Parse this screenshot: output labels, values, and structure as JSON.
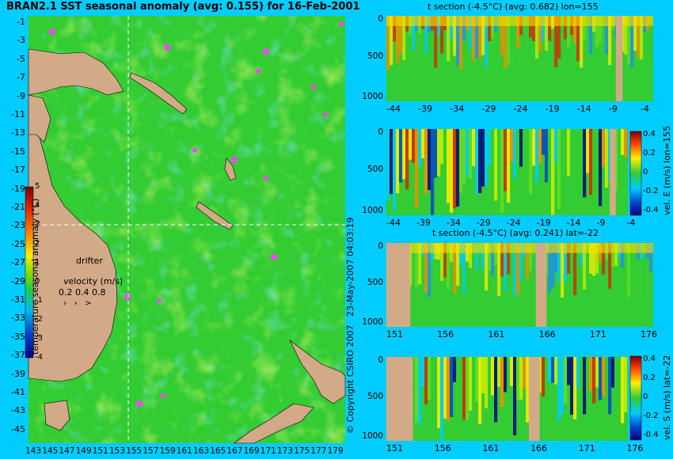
{
  "map": {
    "title": "BRAN2.1 SST seasonal anomaly (avg: 0.155) for 16-Feb-2001",
    "lat_ticks": [
      "-1",
      "-3",
      "-5",
      "-7",
      "-9",
      "-11",
      "-13",
      "-15",
      "-17",
      "-19",
      "-21",
      "-23",
      "-25",
      "-27",
      "-29",
      "-31",
      "-33",
      "-35",
      "-37",
      "-39",
      "-41",
      "-43",
      "-45"
    ],
    "lon_ticks": [
      "143",
      "145",
      "147",
      "149",
      "151",
      "153",
      "155",
      "157",
      "159",
      "161",
      "163",
      "165",
      "167",
      "169",
      "171",
      "173",
      "175",
      "177",
      "179"
    ],
    "colorbar_label": "temperature seasonal anomaly (°C)",
    "colorbar_ticks": [
      "5",
      "4",
      "3",
      "2",
      "1",
      "0",
      "-1",
      "-2",
      "-3",
      "-4"
    ],
    "drifter_label": "drifter",
    "velocity_label": "velocity (m/s)",
    "velocity_ticks": "0.2 0.4 0.8",
    "copyright": "© Copyright CSIRO 2007",
    "date_stamp": "23-May-2007 04:03:19"
  },
  "panels": {
    "p1": {
      "title": "t section (-4.5°C) (avg: 0.682) lon=155",
      "x_ticks": [
        "-44",
        "-39",
        "-34",
        "-29",
        "-24",
        "-19",
        "-14",
        "-9",
        "-4"
      ]
    },
    "p2": {
      "title": "",
      "x_ticks": [
        "-44",
        "-39",
        "-34",
        "-29",
        "-24",
        "-19",
        "-14",
        "-9",
        "-4"
      ],
      "cbar_label": "vel. E (m/s) lon=155"
    },
    "p3": {
      "title": "t section (-4.5°C) (avg: 0.241) lat=-22",
      "x_ticks": [
        "151",
        "156",
        "161",
        "166",
        "171",
        "176"
      ]
    },
    "p4": {
      "title": "",
      "x_ticks": [
        "151",
        "156",
        "161",
        "166",
        "171",
        "176"
      ],
      "cbar_label": "vel. S (m/s) lat=-22"
    },
    "depth_ticks": [
      "0",
      "500",
      "1000"
    ],
    "vel_cbar_ticks": [
      "0.4",
      "0.2",
      "0",
      "-0.2",
      "-0.4"
    ]
  },
  "colors": {
    "background": "#00ccff",
    "land": "#d2aa88",
    "ocean": "#33cc33",
    "drifter": "#ff44ff",
    "guide_line": "#ffffff"
  },
  "chart_data": [
    {
      "type": "heatmap",
      "title": "BRAN2.1 SST seasonal anomaly (avg: 0.155) for 16-Feb-2001",
      "x_range": [
        143,
        180
      ],
      "y_range": [
        -45,
        0
      ],
      "color_range": [
        -4,
        5
      ],
      "units": "°C",
      "guides": {
        "lon": 155,
        "lat": -22
      }
    },
    {
      "type": "heatmap",
      "title": "t section (-4.5°C) (avg: 0.682) lon=155",
      "x_range": [
        -45,
        0
      ],
      "y_range": [
        0,
        1050
      ]
    },
    {
      "type": "heatmap",
      "title": "",
      "x_range": [
        -45,
        0
      ],
      "y_range": [
        0,
        1050
      ],
      "color_range": [
        -0.4,
        0.4
      ],
      "units": "m/s"
    },
    {
      "type": "heatmap",
      "title": "t section (-4.5°C) (avg: 0.241) lat=-22",
      "x_range": [
        150,
        180
      ],
      "y_range": [
        0,
        1050
      ]
    },
    {
      "type": "heatmap",
      "title": "",
      "x_range": [
        150,
        180
      ],
      "y_range": [
        0,
        1050
      ],
      "color_range": [
        -0.4,
        0.4
      ],
      "units": "m/s"
    }
  ]
}
